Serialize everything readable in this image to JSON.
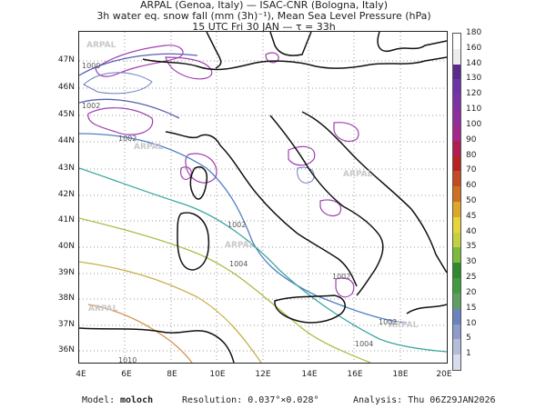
{
  "header": {
    "line1": "ARPAL (Genoa, Italy)  —  ISAC-CNR (Bologna, Italy)",
    "line2": "3h water eq. snow fall (mm (3h)⁻¹), Mean Sea Level Pressure (hPa)",
    "line3": "15 UTC Fri 30 JAN  —  τ = 33h"
  },
  "map": {
    "lat_labels": [
      "47N",
      "46N",
      "45N",
      "44N",
      "43N",
      "42N",
      "41N",
      "40N",
      "39N",
      "38N",
      "37N",
      "36N"
    ],
    "lon_labels": [
      "4E",
      "6E",
      "8E",
      "10E",
      "12E",
      "14E",
      "16E",
      "18E",
      "20E"
    ],
    "watermark": "ARPAL",
    "isobar_labels": [
      "1000",
      "1002",
      "1002",
      "1002",
      "1004",
      "1002",
      "1004",
      "1010",
      "1002"
    ],
    "colors": {
      "coastline": "#111111",
      "grid": "#9a9a9a",
      "snow_contour": "#a040b0"
    }
  },
  "colorbar": {
    "levels": [
      "1",
      "5",
      "10",
      "15",
      "20",
      "25",
      "30",
      "35",
      "40",
      "45",
      "50",
      "60",
      "70",
      "80",
      "90",
      "100",
      "110",
      "120",
      "130",
      "140",
      "160",
      "180"
    ],
    "colors": [
      "#d8dcec",
      "#b3bcdb",
      "#8e9ccb",
      "#6a82c0",
      "#5f9e63",
      "#3f9b3e",
      "#2f8a2f",
      "#7cba3e",
      "#c5cf42",
      "#e7d33b",
      "#e0a52c",
      "#cf6f22",
      "#c44a21",
      "#b7231f",
      "#b01e52",
      "#a4278b",
      "#8e2d9b",
      "#7d32a8",
      "#6b35a8",
      "#5b2b8c",
      "#ededed",
      "#ffffff"
    ]
  },
  "footer": {
    "model_label": "Model:",
    "model_value": "moloch",
    "resolution": "Resolution: 0.037°×0.028°",
    "analysis": "Analysis: Thu 06Z29JAN2026"
  }
}
